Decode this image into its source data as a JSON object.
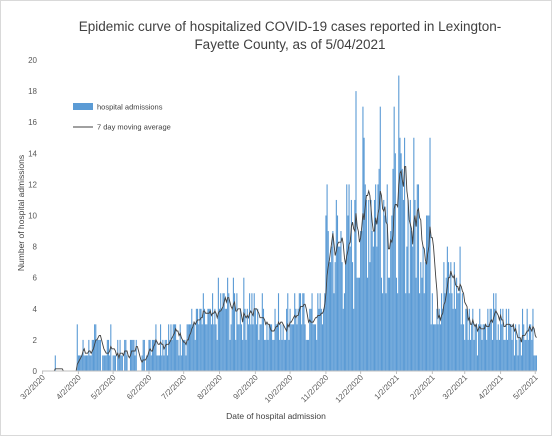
{
  "chart_data": {
    "type": "bar",
    "title": "Epidemic curve of hospitalized COVID-19 cases reported in Lexington-Fayette County, as of 5/04/2021",
    "xlabel": "Date of hospital admission",
    "ylabel": "Number of hospital admissions",
    "ylim": [
      0,
      20
    ],
    "yticks": [
      "0",
      "2",
      "4",
      "6",
      "8",
      "10",
      "12",
      "14",
      "16",
      "18",
      "20"
    ],
    "xticks": [
      "3/2/2020",
      "4/2/2020",
      "5/2/2020",
      "6/2/2020",
      "7/2/2020",
      "8/2/2020",
      "9/2/2020",
      "10/2/2020",
      "11/2/2020",
      "12/2/2020",
      "1/2/2021",
      "2/2/2021",
      "3/2/2021",
      "4/2/2021",
      "5/2/2021"
    ],
    "grid": false,
    "legend_position": "top-left",
    "series": [
      {
        "name": "hospital admissions",
        "kind": "bar",
        "color": "#5b9bd5"
      },
      {
        "name": "7 day moving average",
        "kind": "line",
        "color": "#404040"
      }
    ],
    "x_start": "3/2/2020",
    "x_end": "5/3/2021",
    "monthly_mean_admissions": [
      {
        "month": "3/2020",
        "mean": 0.3
      },
      {
        "month": "4/2020",
        "mean": 1.5
      },
      {
        "month": "5/2020",
        "mean": 1.2
      },
      {
        "month": "6/2020",
        "mean": 2.3
      },
      {
        "month": "7/2020",
        "mean": 3.0
      },
      {
        "month": "8/2020",
        "mean": 4.0
      },
      {
        "month": "9/2020",
        "mean": 3.3
      },
      {
        "month": "10/2020",
        "mean": 3.6
      },
      {
        "month": "11/2020",
        "mean": 8.0
      },
      {
        "month": "12/2020",
        "mean": 11.0
      },
      {
        "month": "1/2021",
        "mean": 10.0
      },
      {
        "month": "2/2021",
        "mean": 5.5
      },
      {
        "month": "3/2021",
        "mean": 3.3
      },
      {
        "month": "4/2021",
        "mean": 2.7
      },
      {
        "month": "5/2021",
        "mean": 2.5
      }
    ],
    "peak": {
      "date": "1/4/2021",
      "value": 19
    },
    "notable_highs": [
      {
        "date": "11/28/2020",
        "value": 18
      },
      {
        "date": "12/19/2020",
        "value": 17
      },
      {
        "date": "1/4/2021",
        "value": 19
      }
    ]
  }
}
